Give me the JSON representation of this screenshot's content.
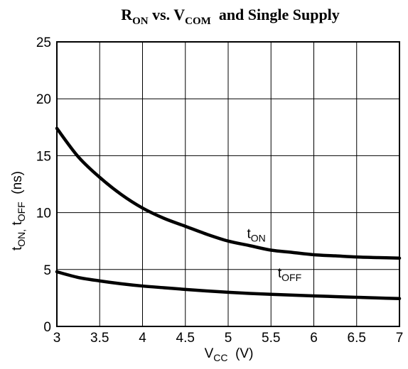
{
  "chart_data": {
    "type": "line",
    "title": {
      "parts": [
        {
          "text": "R",
          "sub": false
        },
        {
          "text": "ON",
          "sub": true
        },
        {
          "text": " vs. V",
          "sub": false
        },
        {
          "text": "COM",
          "sub": true
        },
        {
          "text": "  and Single Supply",
          "sub": false
        }
      ]
    },
    "xlabel": {
      "parts": [
        {
          "text": "V",
          "sub": false
        },
        {
          "text": "CC",
          "sub": true
        },
        {
          "text": "  (V)",
          "sub": false
        }
      ]
    },
    "ylabel": {
      "parts": [
        {
          "text": "t",
          "sub": false
        },
        {
          "text": "ON,",
          "sub": true
        },
        {
          "text": " t",
          "sub": false
        },
        {
          "text": "OFF",
          "sub": true
        },
        {
          "text": "  (ns)",
          "sub": false
        }
      ]
    },
    "xlim": [
      3,
      7
    ],
    "ylim": [
      0,
      25
    ],
    "xticks": [
      "3",
      "3.5",
      "4",
      "4.5",
      "5",
      "5.5",
      "6",
      "6.5",
      "7"
    ],
    "yticks": [
      "0",
      "5",
      "10",
      "15",
      "20",
      "25"
    ],
    "grid": true,
    "series": [
      {
        "name_parts": [
          {
            "text": "t",
            "sub": false
          },
          {
            "text": "ON",
            "sub": true
          }
        ],
        "x": [
          3.0,
          3.25,
          3.5,
          3.75,
          4.0,
          4.25,
          4.5,
          4.75,
          5.0,
          5.25,
          5.5,
          5.75,
          6.0,
          6.25,
          6.5,
          6.75,
          7.0
        ],
        "y": [
          17.4,
          14.9,
          13.1,
          11.6,
          10.4,
          9.5,
          8.8,
          8.1,
          7.5,
          7.1,
          6.7,
          6.5,
          6.3,
          6.2,
          6.1,
          6.05,
          6.0
        ]
      },
      {
        "name_parts": [
          {
            "text": "t",
            "sub": false
          },
          {
            "text": "OFF",
            "sub": true
          }
        ],
        "x": [
          3.0,
          3.25,
          3.5,
          3.75,
          4.0,
          4.25,
          4.5,
          4.75,
          5.0,
          5.25,
          5.5,
          5.75,
          6.0,
          6.25,
          6.5,
          6.75,
          7.0
        ],
        "y": [
          4.8,
          4.3,
          4.0,
          3.75,
          3.55,
          3.4,
          3.25,
          3.12,
          3.0,
          2.9,
          2.82,
          2.75,
          2.68,
          2.62,
          2.56,
          2.5,
          2.45
        ]
      }
    ]
  }
}
